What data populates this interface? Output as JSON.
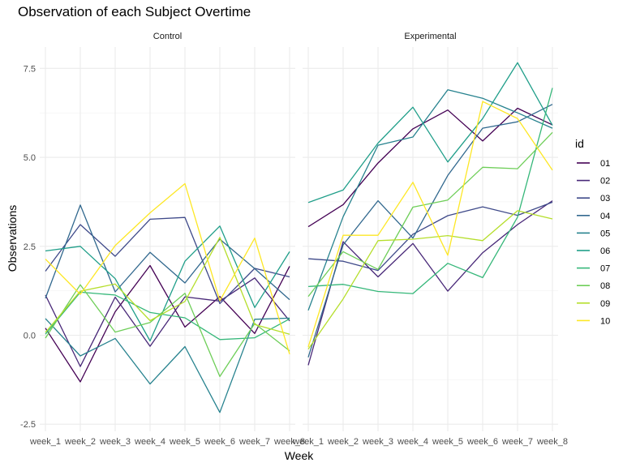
{
  "chart_data": {
    "type": "line",
    "title": "Observation of each Subject Overtime",
    "xlabel": "Week",
    "ylabel": "Observations",
    "x": [
      "week_1",
      "week_2",
      "week_3",
      "week_4",
      "week_5",
      "week_6",
      "week_7",
      "week_8"
    ],
    "y_ticks": [
      -2.5,
      0.0,
      2.5,
      5.0,
      7.5
    ],
    "y_tick_labels": [
      "-2.5",
      "0.0",
      "2.5",
      "5.0",
      "7.5"
    ],
    "ylim": [
      -2.7,
      8.1
    ],
    "grid": true,
    "legend": {
      "title": "id",
      "position": "right"
    },
    "colors": [
      "#440154",
      "#482878",
      "#3e4989",
      "#31688e",
      "#26828e",
      "#1f9e89",
      "#35b779",
      "#6ece58",
      "#b5de2b",
      "#fde725"
    ],
    "panels": [
      {
        "label": "Control",
        "series": [
          {
            "name": "01",
            "values": [
              0.2,
              -1.31,
              0.66,
              1.96,
              0.23,
              1.09,
              0.05,
              1.94
            ]
          },
          {
            "name": "02",
            "values": [
              1.13,
              -0.88,
              1.07,
              -0.31,
              1.08,
              0.96,
              1.61,
              0.4
            ]
          },
          {
            "name": "03",
            "values": [
              1.8,
              3.11,
              2.22,
              3.26,
              3.31,
              0.89,
              1.88,
              1.64
            ]
          },
          {
            "name": "04",
            "values": [
              1.04,
              3.66,
              1.22,
              2.33,
              1.47,
              2.7,
              1.87,
              1.0
            ]
          },
          {
            "name": "05",
            "values": [
              0.47,
              -0.58,
              -0.09,
              -1.37,
              -0.32,
              -2.17,
              0.45,
              0.48
            ]
          },
          {
            "name": "06",
            "values": [
              2.37,
              2.5,
              1.59,
              -0.16,
              2.08,
              3.07,
              0.78,
              2.35
            ]
          },
          {
            "name": "07",
            "values": [
              0.03,
              1.21,
              1.13,
              0.64,
              0.49,
              -0.12,
              -0.07,
              0.46
            ]
          },
          {
            "name": "08",
            "values": [
              -0.08,
              1.42,
              0.09,
              0.36,
              1.18,
              -1.16,
              0.33,
              -0.44
            ]
          },
          {
            "name": "09",
            "values": [
              0.08,
              1.24,
              1.44,
              0.41,
              0.95,
              2.75,
              0.3,
              0.03
            ]
          },
          {
            "name": "10",
            "values": [
              2.14,
              1.15,
              2.52,
              3.44,
              4.26,
              0.97,
              2.73,
              -0.53
            ]
          }
        ]
      },
      {
        "label": "Experimental",
        "series": [
          {
            "name": "01",
            "values": [
              3.05,
              3.67,
              4.84,
              5.8,
              6.33,
              5.46,
              6.38,
              5.91
            ]
          },
          {
            "name": "02",
            "values": [
              -0.84,
              2.63,
              1.64,
              2.58,
              1.24,
              2.32,
              3.11,
              3.78
            ]
          },
          {
            "name": "03",
            "values": [
              2.15,
              2.08,
              1.82,
              2.84,
              3.36,
              3.61,
              3.37,
              3.74
            ]
          },
          {
            "name": "04",
            "values": [
              -0.62,
              2.54,
              3.78,
              2.73,
              4.49,
              5.82,
              6.0,
              6.49
            ]
          },
          {
            "name": "05",
            "values": [
              0.7,
              3.33,
              5.34,
              5.57,
              6.9,
              6.66,
              6.25,
              5.82
            ]
          },
          {
            "name": "06",
            "values": [
              3.73,
              4.08,
              5.4,
              6.41,
              4.87,
              6.09,
              7.66,
              5.9
            ]
          },
          {
            "name": "07",
            "values": [
              1.37,
              1.43,
              1.23,
              1.17,
              2.02,
              1.62,
              3.32,
              6.95
            ]
          },
          {
            "name": "08",
            "values": [
              1.09,
              2.35,
              1.85,
              3.6,
              3.8,
              4.72,
              4.68,
              5.7
            ]
          },
          {
            "name": "09",
            "values": [
              -0.39,
              1.02,
              2.66,
              2.7,
              2.8,
              2.66,
              3.5,
              3.27
            ]
          },
          {
            "name": "10",
            "values": [
              -0.33,
              2.81,
              2.81,
              4.3,
              2.25,
              6.57,
              6.09,
              4.64
            ]
          }
        ]
      }
    ]
  }
}
